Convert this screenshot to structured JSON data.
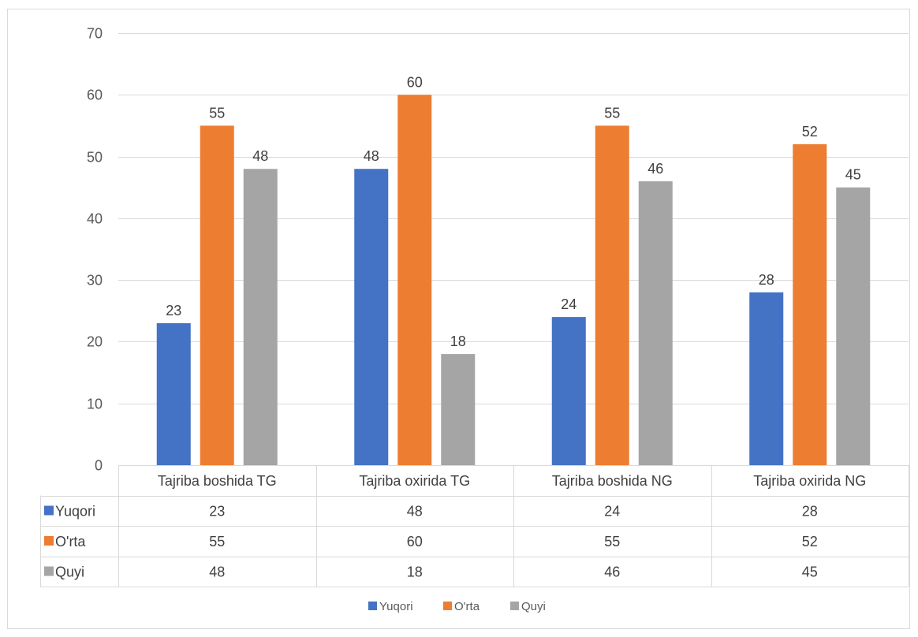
{
  "chart_data": {
    "type": "bar",
    "categories": [
      "Tajriba boshida TG",
      "Tajriba oxirida TG",
      "Tajriba boshida NG",
      "Tajriba oxirida NG"
    ],
    "series": [
      {
        "name": "Yuqori",
        "values": [
          23,
          48,
          24,
          28
        ],
        "color": "#4472C4"
      },
      {
        "name": "O'rta",
        "values": [
          55,
          60,
          55,
          52
        ],
        "color": "#ED7D31"
      },
      {
        "name": "Quyi",
        "values": [
          48,
          18,
          46,
          45
        ],
        "color": "#A5A5A5"
      }
    ],
    "y_ticks": [
      "0",
      "10",
      "20",
      "30",
      "40",
      "50",
      "60",
      "70"
    ],
    "ylim": [
      0,
      70
    ],
    "grid": true,
    "data_labels": true,
    "data_table": true,
    "legend_position": "bottom"
  }
}
